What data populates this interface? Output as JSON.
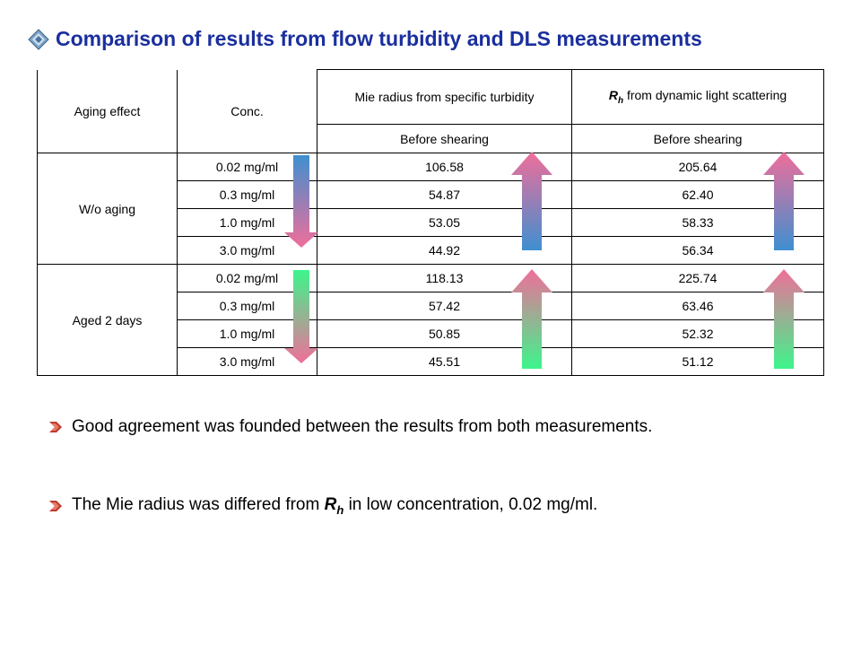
{
  "title": "Comparison of results from flow turbidity and DLS measurements",
  "icons": {
    "title_bullet": "diamond-bullet-icon",
    "list_bullet": "red-arrow-bullet-icon"
  },
  "colors": {
    "title": "#1a2f9e",
    "arrow_pink": "#f06e9a",
    "arrow_blue": "#3f8fd0",
    "arrow_green": "#3df58c"
  },
  "table": {
    "headers": {
      "aging_effect": "Aging effect",
      "conc": "Conc.",
      "mie": "Mie radius from specific turbidity",
      "rh_symbol": "R",
      "rh_sub": "h",
      "rh_rest": " from dynamic light scattering",
      "before_1": "Before shearing",
      "before_2": "Before shearing"
    },
    "groups": [
      {
        "label": "W/o aging",
        "rows": [
          {
            "conc": "0.02 mg/ml",
            "mie": "106.58",
            "rh": "205.64"
          },
          {
            "conc": "0.3 mg/ml",
            "mie": "54.87",
            "rh": "62.40"
          },
          {
            "conc": "1.0 mg/ml",
            "mie": "53.05",
            "rh": "58.33"
          },
          {
            "conc": "3.0 mg/ml",
            "mie": "44.92",
            "rh": "56.34"
          }
        ]
      },
      {
        "label": "Aged 2 days",
        "rows": [
          {
            "conc": "0.02 mg/ml",
            "mie": "118.13",
            "rh": "225.74"
          },
          {
            "conc": "0.3 mg/ml",
            "mie": "57.42",
            "rh": "63.46"
          },
          {
            "conc": "1.0 mg/ml",
            "mie": "50.85",
            "rh": "52.32"
          },
          {
            "conc": "3.0 mg/ml",
            "mie": "45.51",
            "rh": "51.12"
          }
        ]
      }
    ]
  },
  "bullets": {
    "b1": "Good agreement was founded between the results from both measurements.",
    "b2_pre": "The Mie radius was differed from ",
    "b2_sym": "R",
    "b2_sub": "h",
    "b2_post": " in low concentration, 0.02 mg/ml."
  }
}
